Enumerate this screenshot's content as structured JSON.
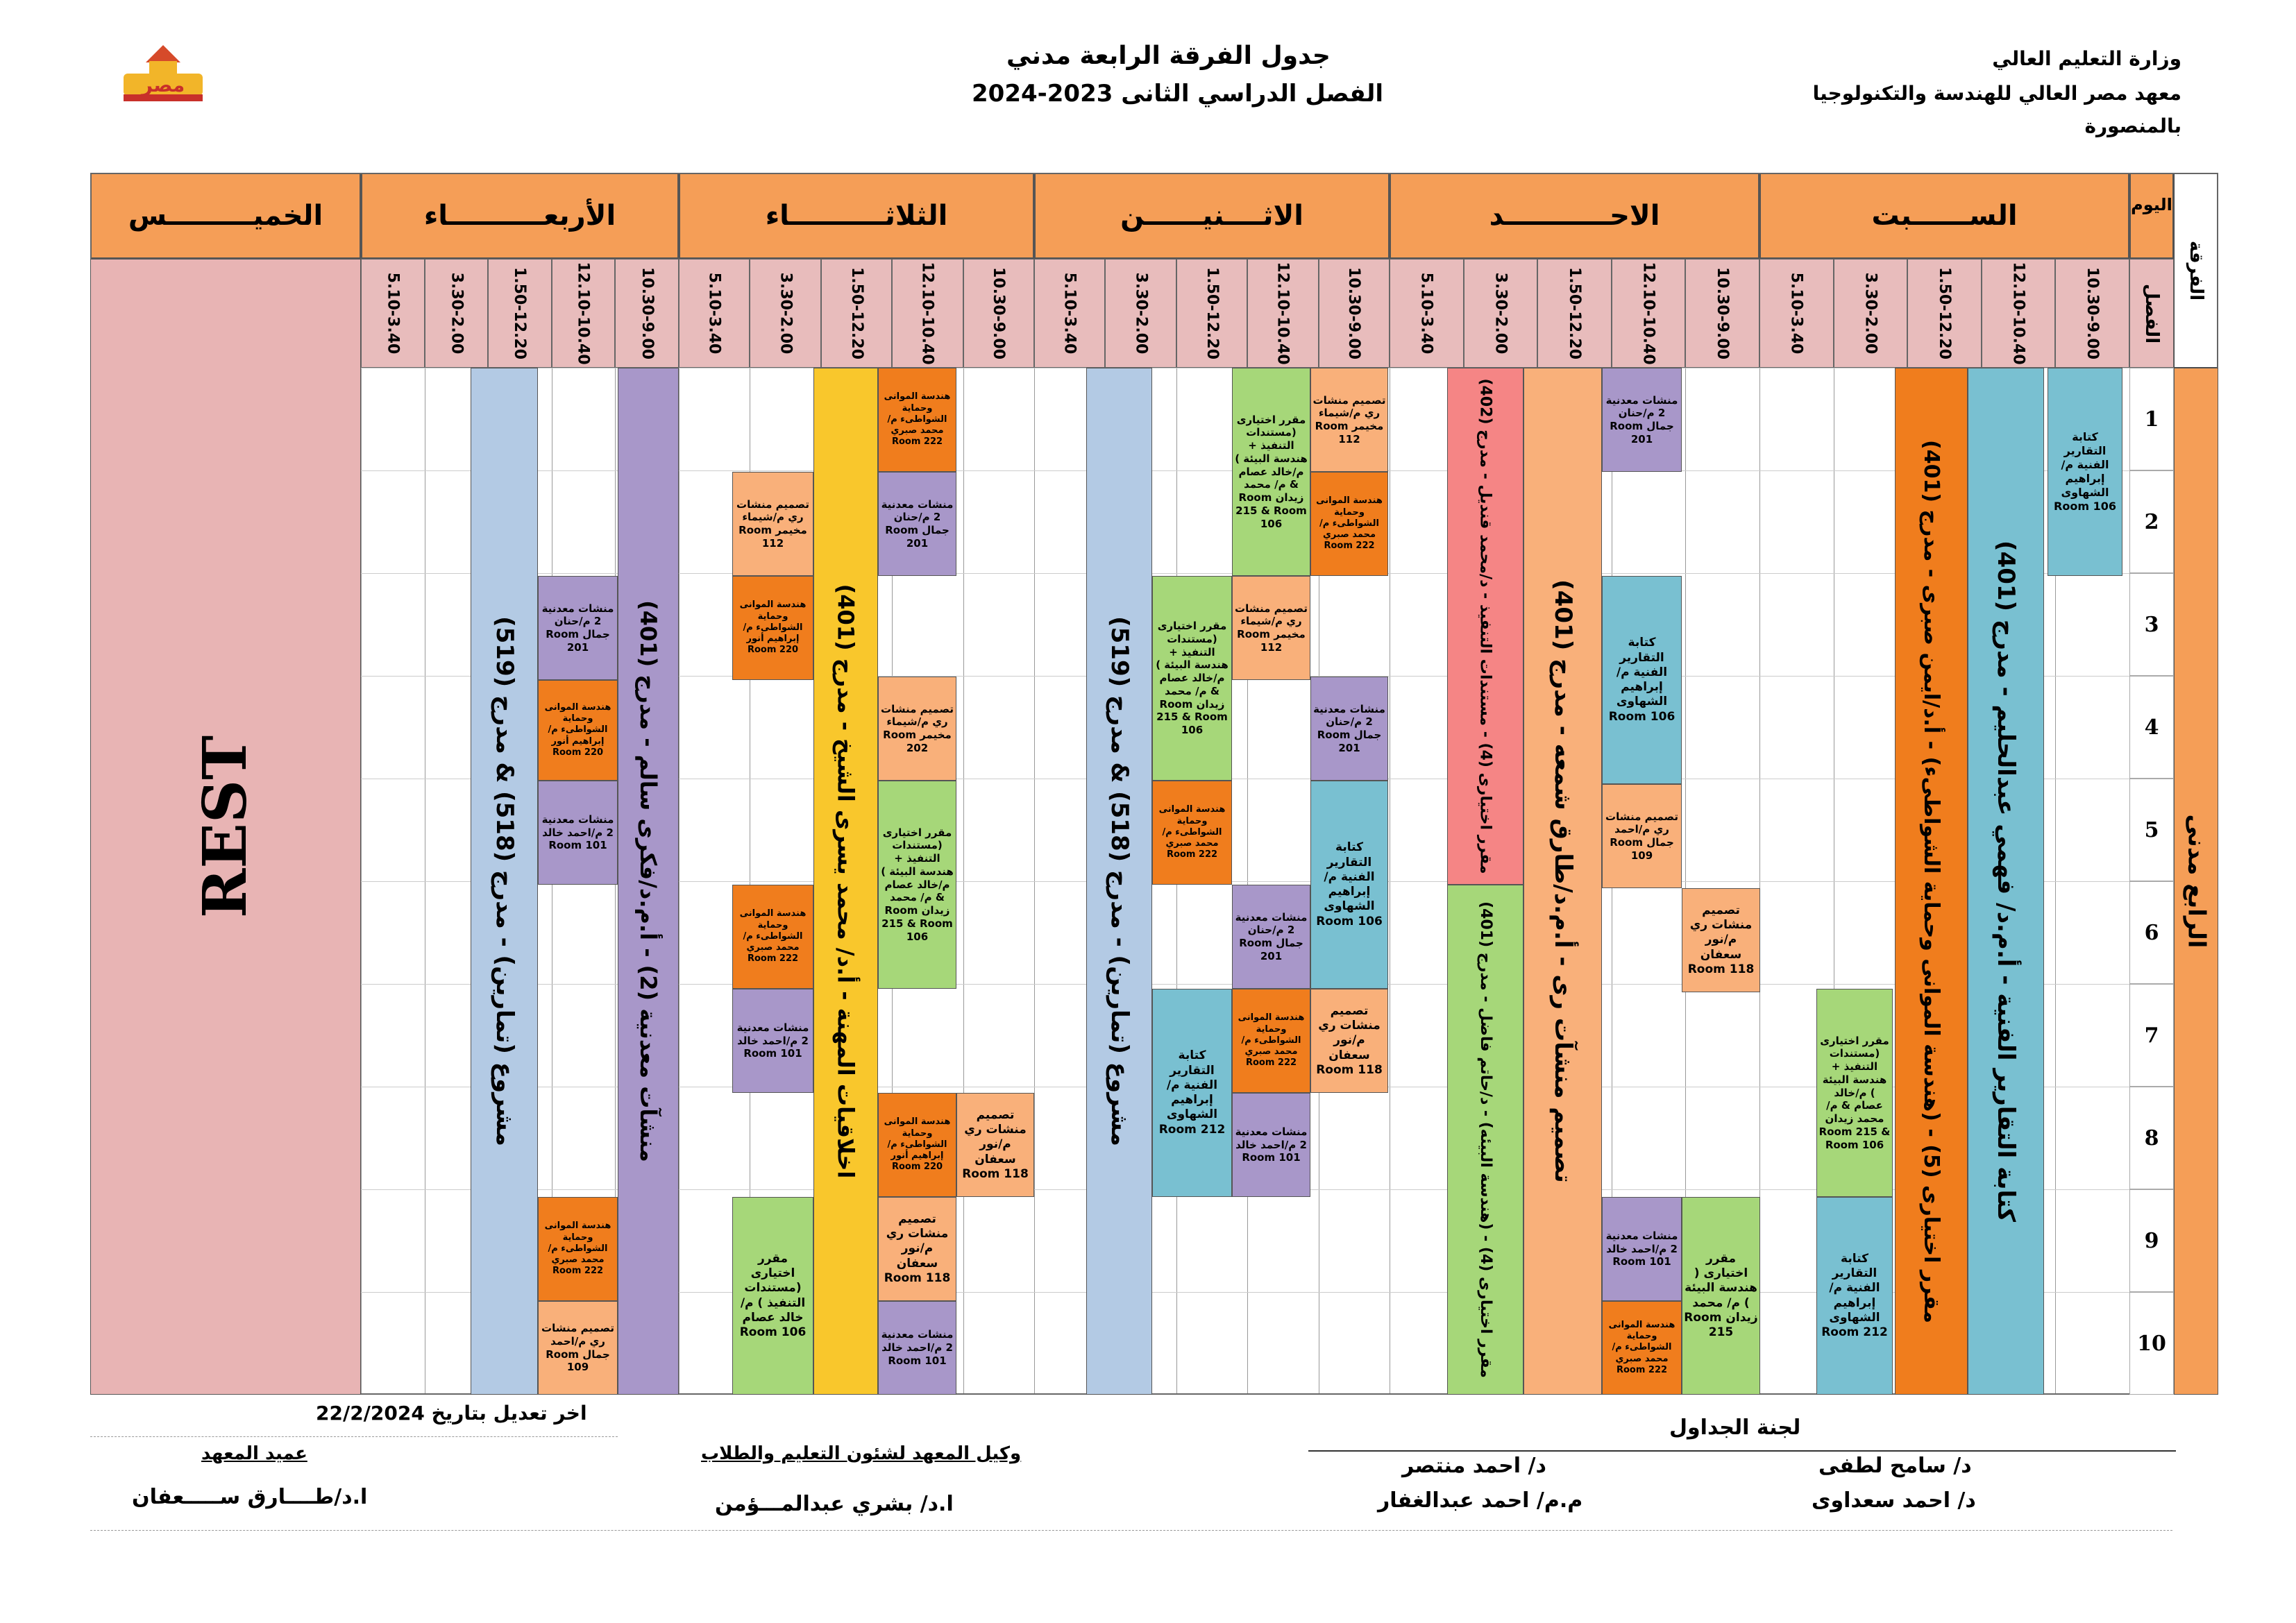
{
  "header": {
    "title": "جدول الفرقة الرابعة مدني",
    "subtitle": "الفصل الدراسي الثانى 2023-2024",
    "org_line1": "وزارة التعليم العالي",
    "org_line2": "معهد مصر العالي للهندسة والتكنولوجيا",
    "org_line3": "بالمنصورة",
    "logo_text": "مصر"
  },
  "corner": {
    "day": "اليوم",
    "class": "الفرقة",
    "period": "الفصل"
  },
  "days": [
    {
      "name": "الســــــبت",
      "color": "#f59e57"
    },
    {
      "name": "الاحـــــــــــد",
      "color": "#f59e57"
    },
    {
      "name": "الاثــــنيــــــن",
      "color": "#f59e57"
    },
    {
      "name": "الثلاثــــــــــاء",
      "color": "#f59e57"
    },
    {
      "name": "الأربعــــــــــاء",
      "color": "#f59e57"
    },
    {
      "name": "الخميـــــــــس",
      "color": "#f59e57"
    }
  ],
  "times": [
    "10.30-9.00",
    "12.10-10.40",
    "1.50-12.20",
    "3.30-2.00",
    "5.10-3.40"
  ],
  "class_name": "الرابع مدنى",
  "rows": [
    "1",
    "2",
    "3",
    "4",
    "5",
    "6",
    "7",
    "8",
    "9",
    "10"
  ],
  "thursday": "REST",
  "blocks": {
    "sat_writing": "كتابة التقارير الفنية م/ إبراهيم الشهاوى Room 106",
    "sat_tech_big": "كتابة التقارير الفنية - أ.م.د/ فهمي عبدالحليم - مدرج (401)",
    "sat_elective5": "مقرر اختيارى (5) - (هندسة الموانى وحماية الشواطىء) - أ.د/ايمن صبرى - مدرج (401)",
    "sat_elective_sec": "مقرر اختيارى (مستندات التنفيذ + هندسة البيئة ) م/خالد عصام & م/ محمد زيدان Room 215 & Room 106",
    "sat_writing2": "كتابة التقارير الفنية م/ إبراهيم الشهاوى Room 212",
    "sun_metal1": "منشات معدنية 2 م/حنان جمال Room 201",
    "sun_writing": "كتابة التقارير الفنية م/ إبراهيم الشهاوى Room 106",
    "sun_irr1": "تصميم منشات ري م/احمد جمال Room 109",
    "sun_irr2": "تصميم منشات ري م/نور سعفان Room 118",
    "sun_metal2": "منشات معدنية 2 م/احمد خالد Room 101",
    "sun_ports": "هندسة الموانى وحماية الشواطىء م/محمد صبري Room 222",
    "sun_elective_env": "مقرر اختيارى ( هندسة البيئة ) م/ محمد زيدان Room 215",
    "sun_irr_big": "تصميم منشآت رى - أ.م.د/طارق شمعه - مدرج (401)",
    "sun_elective4a": "مقرر اختيارى (4) - مستندات التنفيذ - د/محمد قنديل - مدرج (402)",
    "sun_elective4b": "مقرر اختيارى (4) - (هندسة البيئه) - د/حاتم فاضل - مدرج (401)",
    "mon_irr1": "تصميم منشات ري م/شيماء مخيمر Room 112",
    "mon_ports1": "هندسة الموانى وحماية الشواطىء م/محمد صبري Room 222",
    "mon_metal1": "منشات معدنية 2 م/حنان جمال Room 201",
    "mon_writing1": "كتابة التقارير الفنية م/ إبراهيم الشهاوى Room 106",
    "mon_irr2": "تصميم منشات ري م/نور سعفان Room 118",
    "mon_elec1": "مقرر اختيارى (مستندات التنفيذ + هندسة البيئة ) م/خالد عصام & م/ محمد زيدان Room 215 & Room 106",
    "mon_irr3": "تصميم منشات ري م/شيماء مخيمر Room 112",
    "mon_metal2": "منشات معدنية 2 م/حنان جمال Room 201",
    "mon_ports2": "هندسة الموانى وحماية الشواطىء م/محمد صبري Room 222",
    "mon_metal3": "منشات معدنية 2 م/احمد خالد Room 101",
    "mon_elec2": "مقرر اختيارى (مستندات التنفيذ + هندسة البيئة ) م/خالد عصام & م/ محمد زيدان Room 215 & Room 106",
    "mon_ports3": "هندسة الموانى وحماية الشواطىء م/محمد صبري Room 222",
    "mon_writing2": "كتابة التقارير الفنية م/ إبراهيم الشهاوى Room 212",
    "mon_project": "مشروع (تمارين) - مدرج (518) & مدرج (519)",
    "tue_irr1": "تصميم منشات ري م/نور سعفان Room 118",
    "tue_ports1": "هندسة الموانى وحماية الشواطىء م/محمد صبري Room 222",
    "tue_metal1": "منشات معدنية 2 م/حنان جمال Room 201",
    "tue_irr2": "تصميم منشات ري م/شيماء مخيمر Room 202",
    "tue_elec": "مقرر اختيارى (مستندات التنفيذ + هندسة البيئة ) م/خالد عصام & م/ محمد زيدان Room 215 & Room 106",
    "tue_ports2": "هندسة الموانى وحماية الشواطىء م/إبراهيم أنور Room 220",
    "tue_irr3": "تصميم منشات ري م/نور سعفان Room 118",
    "tue_metal2": "منشات معدنية 2 م/احمد خالد Room 101",
    "tue_ethics": "اخلاقيات المهنة - أ.د/ محمد يسرى الشيخ - مدرج (401)",
    "tue_irr4": "تصميم منشات ري م/شيماء مخيمر Room 112",
    "tue_ports3": "هندسة الموانى وحماية الشواطىء م/إبراهيم أنور Room 220",
    "tue_ports4": "هندسة الموانى وحماية الشواطىء م/محمد صبري Room 222",
    "tue_metal3": "منشات معدنية 2 م/احمد خالد Room 101",
    "tue_elec2": "مقرر اختيارى (مستندات التنفيذ ) م/خالد عصام Room 106",
    "wed_metal_big": "منشآت معدنية (2) - أ.م.د/فكرى سالم - مدرج (401)",
    "wed_metal1": "منشات معدنية 2 م/حنان جمال Room 201",
    "wed_ports1": "هندسة الموانى وحماية الشواطىء م/إبراهيم أنور Room 220",
    "wed_metal2": "منشات معدنية 2 م/احمد خالد Room 101",
    "wed_ports2": "هندسة الموانى وحماية الشواطىء م/محمد صبري Room 222",
    "wed_irr": "تصميم منشات ري م/احمد جمال Room 109",
    "wed_project": "مشروع (تمارين) - مدرج (518) & مدرج (519)"
  },
  "footer": {
    "last_edit": "اخر تعديل بتاريخ 22/2/2024",
    "committee": "لجنة الجداول",
    "dean_title": "عميد المعهد",
    "dean_name": "ا.د/طــــارق ســـــعفان",
    "vice_title": "وكيل المعهد لشئون التعليم والطلاب",
    "vice_name": "ا.د/ بشري عبدالمـــؤمن",
    "m1": "د/ سامح لطفى",
    "m2": "د/ احمد منتصر",
    "m3": "د/ احمد سعداوى",
    "m4": "م.م/ احمد عبدالغفار"
  },
  "colors": {
    "header_orange": "#f59e57",
    "time_pink": "#e8bcbc",
    "rest_pink": "#e8b4b4",
    "blue_lecture": "#b3cae4",
    "purple_metal": "#a897c9",
    "yellow_ethics": "#f9c72c",
    "peach_irr": "#f9b07a",
    "orange_ports": "#f07d1d",
    "green_elective": "#a6d779",
    "teal_writing": "#79c0d1",
    "salmon_elective4": "#f58585"
  }
}
